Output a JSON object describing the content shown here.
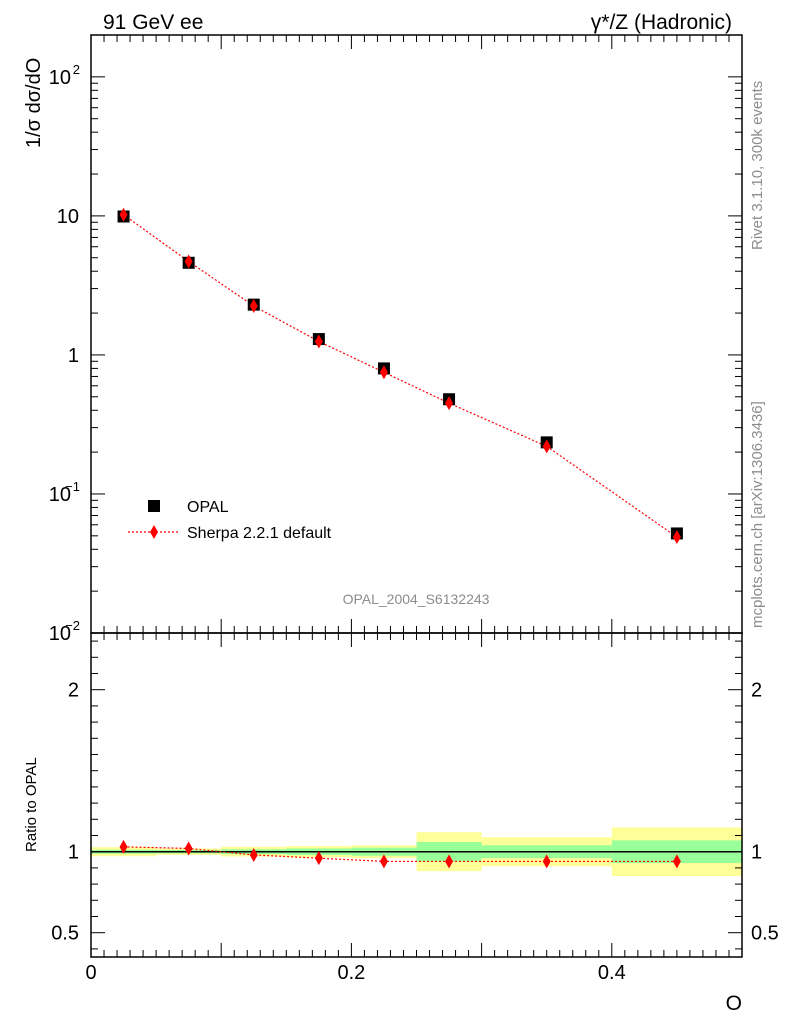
{
  "header": {
    "left": "91 GeV ee",
    "right": "γ*/Z (Hadronic)"
  },
  "side_labels": {
    "rivet": "Rivet 3.1.10,  300k events",
    "mcplots": "mcplots.cern.ch [arXiv:1306.3436]"
  },
  "chart_data": [
    {
      "type": "scatter",
      "ylabel": "1/σ dσ/dO",
      "xlabel": "O",
      "xlim": [
        0,
        0.5
      ],
      "ylim": [
        0.01,
        200
      ],
      "yscale": "log",
      "yticks": [
        "10^-2",
        "10^-1",
        "1",
        "10",
        "10^2"
      ],
      "watermark": "OPAL_2004_S6132243",
      "legend_position": "lower-left",
      "series": [
        {
          "name": "OPAL",
          "color": "#000000",
          "marker": "square",
          "x": [
            0.025,
            0.075,
            0.125,
            0.175,
            0.225,
            0.275,
            0.35,
            0.45
          ],
          "values": [
            9.9,
            4.6,
            2.3,
            1.3,
            0.8,
            0.48,
            0.235,
            0.052
          ]
        },
        {
          "name": "Sherpa 2.2.1 default",
          "color": "#ff0000",
          "marker": "diamond",
          "line": "dotted",
          "x": [
            0.025,
            0.075,
            0.125,
            0.175,
            0.225,
            0.275,
            0.35,
            0.45
          ],
          "values": [
            10.2,
            4.7,
            2.25,
            1.25,
            0.75,
            0.45,
            0.22,
            0.049
          ]
        }
      ]
    },
    {
      "type": "scatter",
      "ylabel": "Ratio to OPAL",
      "xlabel": "O",
      "xlim": [
        0,
        0.5
      ],
      "ylim": [
        0.35,
        2.35
      ],
      "xticks": [
        "0",
        "0.2",
        "0.4"
      ],
      "yticks": [
        "0.5",
        "1",
        "2"
      ],
      "bins": [
        [
          0,
          0.05
        ],
        [
          0.05,
          0.1
        ],
        [
          0.1,
          0.15
        ],
        [
          0.15,
          0.2
        ],
        [
          0.2,
          0.25
        ],
        [
          0.25,
          0.3
        ],
        [
          0.3,
          0.4
        ],
        [
          0.4,
          0.5
        ]
      ],
      "band_stat": [
        0.012,
        0.01,
        0.015,
        0.02,
        0.025,
        0.06,
        0.04,
        0.07
      ],
      "band_total": [
        0.028,
        0.02,
        0.03,
        0.035,
        0.04,
        0.12,
        0.09,
        0.15
      ],
      "series": [
        {
          "name": "Sherpa 2.2.1 default",
          "color": "#ff0000",
          "x": [
            0.025,
            0.075,
            0.125,
            0.175,
            0.225,
            0.275,
            0.35,
            0.45
          ],
          "values": [
            1.03,
            1.02,
            0.98,
            0.96,
            0.94,
            0.94,
            0.94,
            0.94
          ]
        }
      ]
    }
  ]
}
